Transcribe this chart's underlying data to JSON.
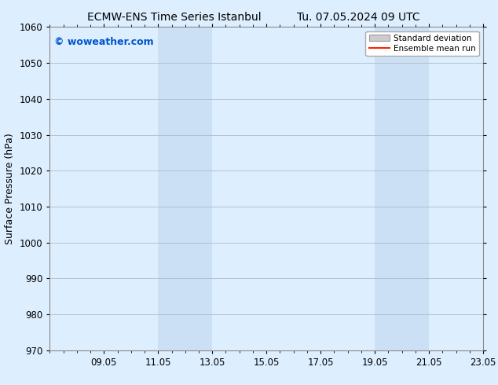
{
  "title_left": "ECMW-ENS Time Series Istanbul",
  "title_right": "Tu. 07.05.2024 09 UTC",
  "ylabel": "Surface Pressure (hPa)",
  "ylim": [
    970,
    1060
  ],
  "yticks": [
    970,
    980,
    990,
    1000,
    1010,
    1020,
    1030,
    1040,
    1050,
    1060
  ],
  "xtick_labels": [
    "09.05",
    "11.05",
    "13.05",
    "15.05",
    "17.05",
    "19.05",
    "21.05",
    "23.05"
  ],
  "xtick_positions": [
    2,
    4,
    6,
    8,
    10,
    12,
    14,
    16
  ],
  "xlim": [
    0,
    16
  ],
  "shade_bands": [
    {
      "x_start": 4,
      "x_end": 6,
      "color": "#cce0f5",
      "alpha": 1.0
    },
    {
      "x_start": 12,
      "x_end": 14,
      "color": "#cce0f5",
      "alpha": 1.0
    }
  ],
  "background_color": "#ddeeff",
  "plot_bg_color": "#ddeeff",
  "grid_color": "#aabbcc",
  "title_fontsize": 10,
  "axis_label_fontsize": 9,
  "tick_fontsize": 8.5,
  "watermark_text": "© woweather.com",
  "watermark_color": "#0055cc",
  "watermark_fontsize": 9,
  "legend_std_dev_color": "#cccccc",
  "legend_mean_run_color": "#ff2200"
}
